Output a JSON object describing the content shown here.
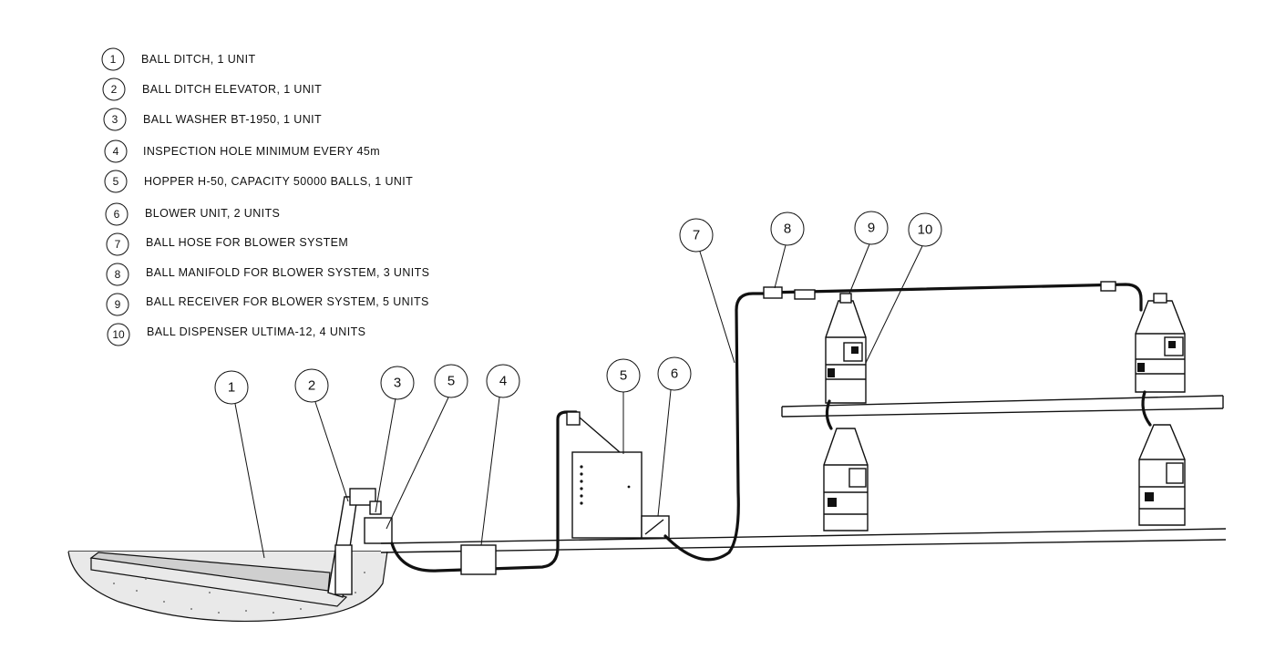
{
  "legend": [
    {
      "num": "1",
      "text": "BALL DITCH, 1 UNIT"
    },
    {
      "num": "2",
      "text": "BALL DITCH ELEVATOR, 1 UNIT"
    },
    {
      "num": "3",
      "text": "BALL WASHER BT-1950, 1 UNIT"
    },
    {
      "num": "4",
      "text": "INSPECTION HOLE MINIMUM EVERY 45m"
    },
    {
      "num": "5",
      "text": "HOPPER H-50, CAPACITY 50000 BALLS, 1 UNIT"
    },
    {
      "num": "6",
      "text": "BLOWER UNIT, 2 UNITS"
    },
    {
      "num": "7",
      "text": "BALL HOSE FOR BLOWER SYSTEM"
    },
    {
      "num": "8",
      "text": "BALL MANIFOLD FOR BLOWER SYSTEM, 3 UNITS"
    },
    {
      "num": "9",
      "text": "BALL RECEIVER FOR BLOWER SYSTEM, 5 UNITS"
    },
    {
      "num": "10",
      "text": "BALL DISPENSER ULTIMA-12, 4 UNITS"
    }
  ],
  "callouts": [
    "1",
    "2",
    "3",
    "5",
    "4",
    "5",
    "6",
    "7",
    "8",
    "9",
    "10"
  ]
}
